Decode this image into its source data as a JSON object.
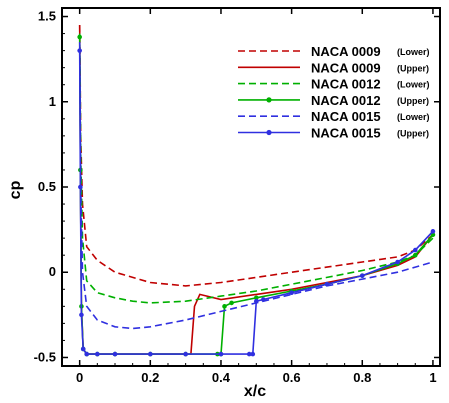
{
  "chart_data": {
    "type": "line",
    "xlabel": "x/c",
    "ylabel": "cp",
    "xlim": [
      -0.05,
      1.02
    ],
    "ylim": [
      -0.55,
      1.55
    ],
    "xticks": [
      "0",
      "0.2",
      "0.4",
      "0.6",
      "0.8",
      "1"
    ],
    "yticks": [
      "-0.5",
      "0",
      "0.5",
      "1",
      "1.5"
    ],
    "legend_position": "top-right",
    "series": [
      {
        "name": "NACA 0009",
        "side": "(Lower)",
        "color": "#c00000",
        "dash": true,
        "markers": false,
        "x": [
          0,
          0.003,
          0.008,
          0.02,
          0.05,
          0.1,
          0.15,
          0.2,
          0.3,
          0.4,
          0.5,
          0.6,
          0.7,
          0.8,
          0.9,
          0.95,
          1.0
        ],
        "y": [
          1.45,
          0.8,
          0.4,
          0.15,
          0.07,
          0.0,
          -0.03,
          -0.06,
          -0.08,
          -0.06,
          -0.03,
          0.0,
          0.03,
          0.06,
          0.09,
          0.13,
          0.22
        ]
      },
      {
        "name": "NACA 0009",
        "side": "(Upper)",
        "color": "#c00000",
        "dash": false,
        "markers": false,
        "x": [
          0,
          0.002,
          0.005,
          0.01,
          0.02,
          0.05,
          0.1,
          0.2,
          0.3,
          0.315,
          0.325,
          0.34,
          0.4,
          0.5,
          0.6,
          0.7,
          0.8,
          0.9,
          0.95,
          1.0
        ],
        "y": [
          1.45,
          0.6,
          -0.2,
          -0.45,
          -0.48,
          -0.48,
          -0.48,
          -0.48,
          -0.48,
          -0.48,
          -0.2,
          -0.13,
          -0.16,
          -0.13,
          -0.1,
          -0.06,
          -0.02,
          0.04,
          0.09,
          0.22
        ]
      },
      {
        "name": "NACA 0012",
        "side": "(Lower)",
        "color": "#00b000",
        "dash": true,
        "markers": false,
        "x": [
          0,
          0.003,
          0.008,
          0.02,
          0.05,
          0.1,
          0.15,
          0.2,
          0.3,
          0.4,
          0.5,
          0.6,
          0.7,
          0.8,
          0.9,
          0.95,
          1.0
        ],
        "y": [
          1.4,
          0.7,
          0.2,
          -0.05,
          -0.12,
          -0.15,
          -0.17,
          -0.18,
          -0.17,
          -0.14,
          -0.11,
          -0.07,
          -0.03,
          0.01,
          0.06,
          0.1,
          0.2
        ]
      },
      {
        "name": "NACA 0012",
        "side": "(Upper)",
        "color": "#00b000",
        "dash": false,
        "markers": true,
        "x": [
          0,
          0.002,
          0.005,
          0.01,
          0.02,
          0.05,
          0.1,
          0.2,
          0.3,
          0.39,
          0.4,
          0.41,
          0.43,
          0.5,
          0.6,
          0.7,
          0.8,
          0.9,
          0.95,
          1.0
        ],
        "y": [
          1.38,
          0.6,
          -0.2,
          -0.45,
          -0.48,
          -0.48,
          -0.48,
          -0.48,
          -0.48,
          -0.48,
          -0.48,
          -0.2,
          -0.18,
          -0.15,
          -0.11,
          -0.07,
          -0.02,
          0.05,
          0.1,
          0.22
        ]
      },
      {
        "name": "NACA 0015",
        "side": "(Lower)",
        "color": "#3030e0",
        "dash": true,
        "markers": false,
        "x": [
          0,
          0.003,
          0.008,
          0.02,
          0.05,
          0.1,
          0.15,
          0.2,
          0.3,
          0.4,
          0.5,
          0.6,
          0.7,
          0.8,
          0.9,
          0.95,
          1.0
        ],
        "y": [
          1.35,
          0.5,
          0.0,
          -0.2,
          -0.28,
          -0.32,
          -0.33,
          -0.32,
          -0.28,
          -0.23,
          -0.18,
          -0.13,
          -0.08,
          -0.04,
          0.0,
          0.03,
          0.06
        ]
      },
      {
        "name": "NACA 0015",
        "side": "(Upper)",
        "color": "#3030e0",
        "dash": false,
        "markers": true,
        "x": [
          0,
          0.002,
          0.005,
          0.01,
          0.02,
          0.05,
          0.1,
          0.2,
          0.3,
          0.4,
          0.48,
          0.49,
          0.5,
          0.52,
          0.6,
          0.7,
          0.8,
          0.9,
          0.95,
          1.0
        ],
        "y": [
          1.3,
          0.5,
          -0.25,
          -0.45,
          -0.48,
          -0.48,
          -0.48,
          -0.48,
          -0.48,
          -0.48,
          -0.48,
          -0.48,
          -0.17,
          -0.16,
          -0.12,
          -0.07,
          -0.02,
          0.06,
          0.13,
          0.24
        ]
      }
    ]
  }
}
